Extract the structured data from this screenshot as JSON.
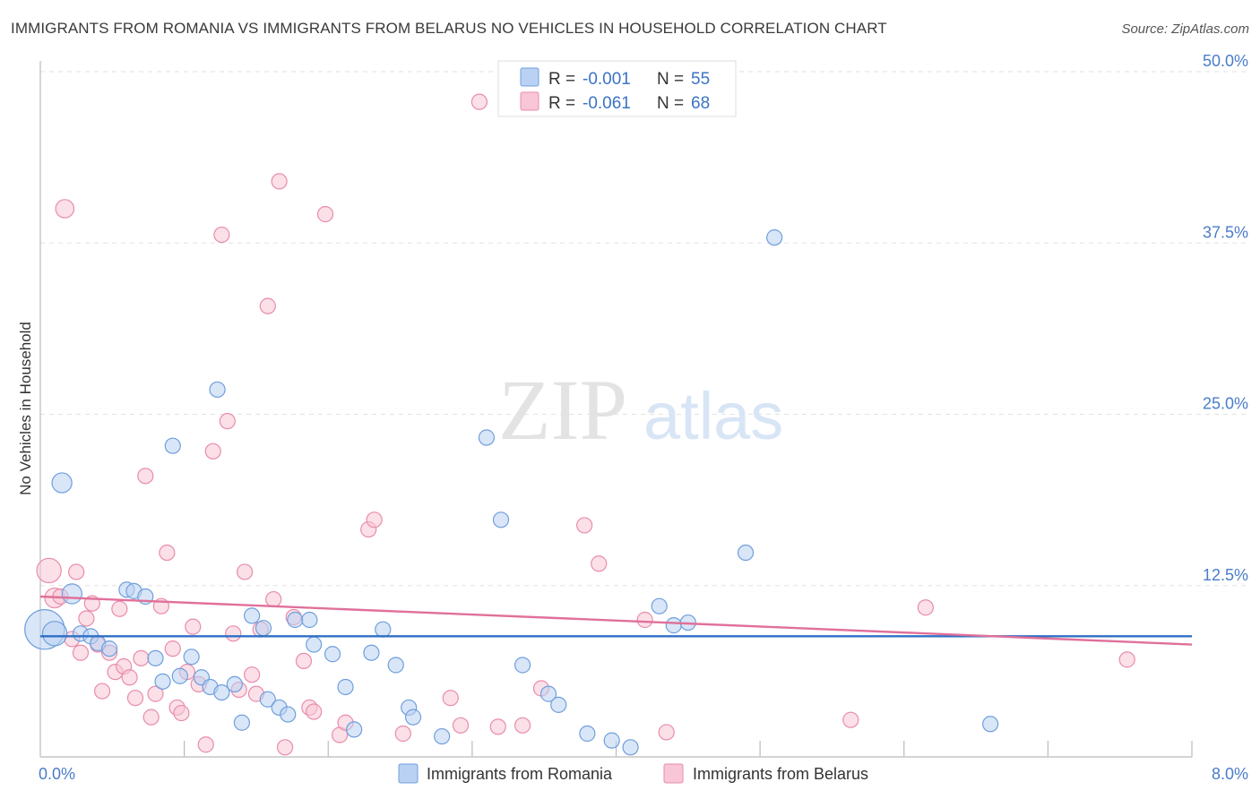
{
  "header": {
    "title": "IMMIGRANTS FROM ROMANIA VS IMMIGRANTS FROM BELARUS NO VEHICLES IN HOUSEHOLD CORRELATION CHART",
    "source": "Source: ZipAtlas.com"
  },
  "watermark": {
    "part1": "ZIP",
    "part2": "atlas"
  },
  "legend_top": {
    "r_label": "R =",
    "n_label": "N =",
    "romania": {
      "r": "-0.001",
      "n": "55"
    },
    "belarus": {
      "r": "-0.061",
      "n": "68"
    }
  },
  "legend_bottom": {
    "romania": "Immigrants from Romania",
    "belarus": "Immigrants from Belarus"
  },
  "colors": {
    "romania_fill": "#b9d2f3",
    "romania_stroke": "#6f9fdc",
    "romania_line": "#2f6fc6",
    "belarus_fill": "#f8c6d6",
    "belarus_stroke": "#e98cab",
    "belarus_line": "#e0709a",
    "axis_text": "#4a7cc9"
  },
  "chart_data": {
    "type": "scatter",
    "title": "IMMIGRANTS FROM ROMANIA VS IMMIGRANTS FROM BELARUS NO VEHICLES IN HOUSEHOLD CORRELATION CHART",
    "xlabel": "",
    "ylabel": "No Vehicles in Household",
    "xlim": [
      0,
      8
    ],
    "ylim": [
      0,
      50
    ],
    "x_tick_labels": {
      "min": "0.0%",
      "max": "8.0%"
    },
    "y_ticks": [
      {
        "value": 12.5,
        "label": "12.5%"
      },
      {
        "value": 25.0,
        "label": "25.0%"
      },
      {
        "value": 37.5,
        "label": "37.5%"
      },
      {
        "value": 50.0,
        "label": "50.0%"
      }
    ],
    "grid": true,
    "series": [
      {
        "name": "Immigrants from Romania",
        "trend": {
          "y_at_xmin": 8.8,
          "y_at_xmax": 8.8
        },
        "points": [
          [
            0.03,
            9.3,
            2.6
          ],
          [
            0.1,
            9.0,
            1.6
          ],
          [
            0.15,
            20.0,
            1.3
          ],
          [
            0.22,
            11.9,
            1.3
          ],
          [
            0.28,
            9.0,
            1
          ],
          [
            0.35,
            8.8,
            1
          ],
          [
            0.4,
            8.3,
            1
          ],
          [
            0.48,
            7.9,
            1
          ],
          [
            0.6,
            12.2,
            1
          ],
          [
            0.65,
            12.1,
            1
          ],
          [
            0.73,
            11.7,
            1
          ],
          [
            0.8,
            7.2,
            1
          ],
          [
            0.85,
            5.5,
            1
          ],
          [
            0.92,
            22.7,
            1
          ],
          [
            0.97,
            5.9,
            1
          ],
          [
            1.05,
            7.3,
            1
          ],
          [
            1.12,
            5.8,
            1
          ],
          [
            1.18,
            5.1,
            1
          ],
          [
            1.23,
            26.8,
            1
          ],
          [
            1.26,
            4.7,
            1
          ],
          [
            1.35,
            5.3,
            1
          ],
          [
            1.4,
            2.5,
            1
          ],
          [
            1.47,
            10.3,
            1
          ],
          [
            1.55,
            9.4,
            1
          ],
          [
            1.58,
            4.2,
            1
          ],
          [
            1.66,
            3.6,
            1
          ],
          [
            1.72,
            3.1,
            1
          ],
          [
            1.77,
            10.0,
            1
          ],
          [
            1.87,
            10.0,
            1
          ],
          [
            1.9,
            8.2,
            1
          ],
          [
            2.03,
            7.5,
            1
          ],
          [
            2.12,
            5.1,
            1
          ],
          [
            2.18,
            2.0,
            1
          ],
          [
            2.3,
            7.6,
            1
          ],
          [
            2.38,
            9.3,
            1
          ],
          [
            2.47,
            6.7,
            1
          ],
          [
            2.56,
            3.6,
            1
          ],
          [
            2.59,
            2.9,
            1
          ],
          [
            2.79,
            1.5,
            1
          ],
          [
            3.1,
            23.3,
            1
          ],
          [
            3.2,
            17.3,
            1
          ],
          [
            3.35,
            6.7,
            1
          ],
          [
            3.53,
            4.6,
            1
          ],
          [
            3.6,
            3.8,
            1
          ],
          [
            3.8,
            1.7,
            1
          ],
          [
            3.97,
            1.2,
            1
          ],
          [
            4.1,
            0.7,
            1
          ],
          [
            4.3,
            11.0,
            1
          ],
          [
            4.4,
            9.6,
            1
          ],
          [
            4.5,
            9.8,
            1
          ],
          [
            4.9,
            14.9,
            1
          ],
          [
            5.1,
            37.9,
            1
          ],
          [
            6.6,
            2.4,
            1
          ]
        ]
      },
      {
        "name": "Immigrants from Belarus",
        "trend": {
          "y_at_xmin": 11.7,
          "y_at_xmax": 8.2
        },
        "points": [
          [
            0.06,
            13.6,
            1.6
          ],
          [
            0.1,
            11.6,
            1.3
          ],
          [
            0.14,
            11.7,
            1
          ],
          [
            0.17,
            40.0,
            1.2
          ],
          [
            0.22,
            8.6,
            1
          ],
          [
            0.25,
            13.5,
            1
          ],
          [
            0.28,
            7.6,
            1
          ],
          [
            0.32,
            10.1,
            1
          ],
          [
            0.36,
            11.2,
            1
          ],
          [
            0.4,
            8.2,
            1
          ],
          [
            0.43,
            4.8,
            1
          ],
          [
            0.48,
            7.6,
            1
          ],
          [
            0.52,
            6.2,
            1
          ],
          [
            0.55,
            10.8,
            1
          ],
          [
            0.58,
            6.6,
            1
          ],
          [
            0.62,
            5.8,
            1
          ],
          [
            0.66,
            4.3,
            1
          ],
          [
            0.7,
            7.2,
            1
          ],
          [
            0.73,
            20.5,
            1
          ],
          [
            0.77,
            2.9,
            1
          ],
          [
            0.8,
            4.6,
            1
          ],
          [
            0.84,
            11.0,
            1
          ],
          [
            0.88,
            14.9,
            1
          ],
          [
            0.92,
            7.9,
            1
          ],
          [
            0.95,
            3.6,
            1
          ],
          [
            0.98,
            3.2,
            1
          ],
          [
            1.02,
            6.2,
            1
          ],
          [
            1.06,
            9.5,
            1
          ],
          [
            1.1,
            5.3,
            1
          ],
          [
            1.15,
            0.9,
            1
          ],
          [
            1.2,
            22.3,
            1
          ],
          [
            1.26,
            38.1,
            1
          ],
          [
            1.3,
            24.5,
            1
          ],
          [
            1.34,
            9.0,
            1
          ],
          [
            1.38,
            4.9,
            1
          ],
          [
            1.42,
            13.5,
            1
          ],
          [
            1.47,
            6.0,
            1
          ],
          [
            1.5,
            4.6,
            1
          ],
          [
            1.53,
            9.3,
            1
          ],
          [
            1.58,
            32.9,
            1
          ],
          [
            1.62,
            11.5,
            1
          ],
          [
            1.66,
            42.0,
            1
          ],
          [
            1.7,
            0.7,
            1
          ],
          [
            1.76,
            10.2,
            1
          ],
          [
            1.83,
            7.0,
            1
          ],
          [
            1.87,
            3.6,
            1
          ],
          [
            1.9,
            3.3,
            1
          ],
          [
            1.98,
            39.6,
            1
          ],
          [
            2.08,
            1.6,
            1
          ],
          [
            2.12,
            2.5,
            1
          ],
          [
            2.28,
            16.6,
            1
          ],
          [
            2.32,
            17.3,
            1
          ],
          [
            2.52,
            1.7,
            1
          ],
          [
            2.85,
            4.3,
            1
          ],
          [
            2.92,
            2.3,
            1
          ],
          [
            3.05,
            47.8,
            1
          ],
          [
            3.18,
            2.2,
            1
          ],
          [
            3.35,
            2.3,
            1
          ],
          [
            3.48,
            5.0,
            1
          ],
          [
            3.78,
            16.9,
            1
          ],
          [
            3.88,
            14.1,
            1
          ],
          [
            4.2,
            10.0,
            1
          ],
          [
            4.35,
            1.8,
            1
          ],
          [
            5.63,
            2.7,
            1
          ],
          [
            6.15,
            10.9,
            1
          ],
          [
            7.55,
            7.1,
            1
          ]
        ]
      }
    ]
  }
}
